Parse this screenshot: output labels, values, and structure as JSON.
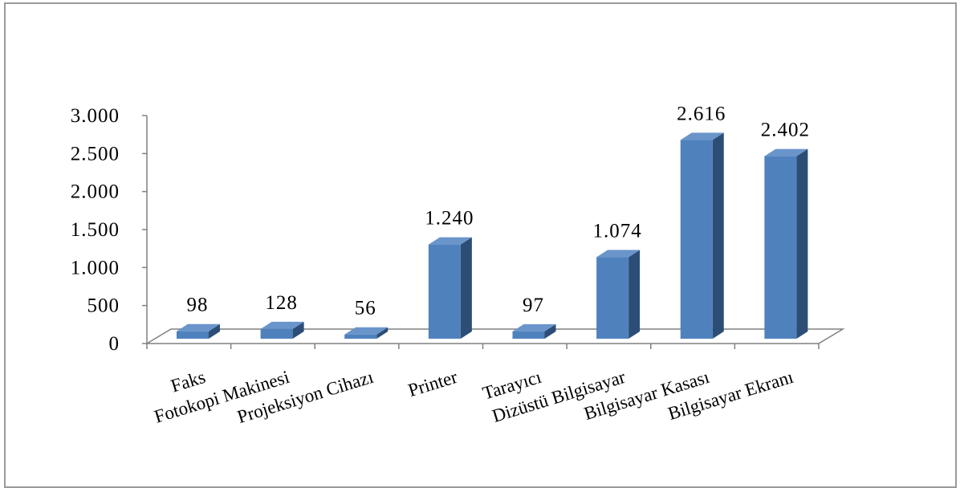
{
  "chart_data": {
    "type": "bar",
    "title": "",
    "xlabel": "",
    "ylabel": "",
    "categories": [
      "Faks",
      "Fotokopi Makinesi",
      "Projeksiyon Cihazı",
      "Printer",
      "Tarayıcı",
      "Dizüstü Bilgisayar",
      "Bilgisayar Kasası",
      "Bilgisayar Ekranı"
    ],
    "values": [
      98,
      128,
      56,
      1240,
      97,
      1074,
      2616,
      2402
    ],
    "value_labels": [
      "98",
      "128",
      "56",
      "1.240",
      "97",
      "1.074",
      "2.616",
      "2.402"
    ],
    "ylim": [
      0,
      3000
    ],
    "yticks": [
      0,
      500,
      1000,
      1500,
      2000,
      2500,
      3000
    ],
    "ytick_labels": [
      "0",
      "500",
      "1.000",
      "1.500",
      "2.000",
      "2.500",
      "3.000"
    ],
    "bar_color": "#4f81bd",
    "bar_side_color": "#2c4d75",
    "bar_top_color": "#6a95cb",
    "legend": "none",
    "grid": false
  }
}
